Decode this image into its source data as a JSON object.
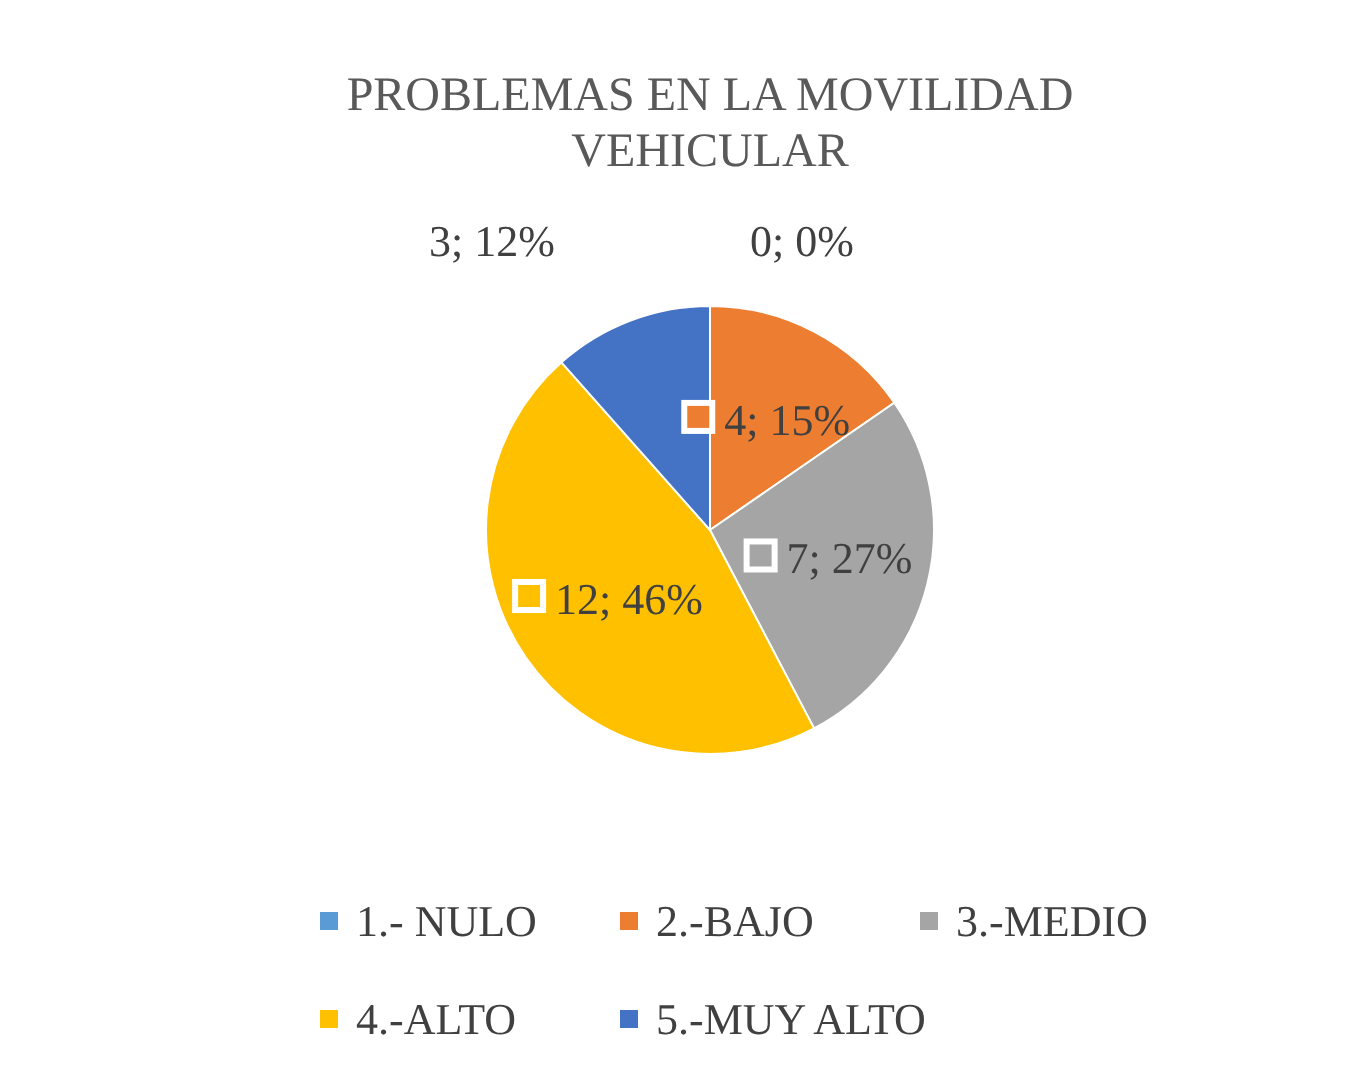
{
  "chart_data": {
    "type": "pie",
    "title": "PROBLEMAS EN LA MOVILIDAD VEHICULAR",
    "categories": [
      "1.- NULO",
      "2.-BAJO",
      "3.-MEDIO",
      "4.-ALTO",
      "5.-MUY ALTO"
    ],
    "values": [
      0,
      4,
      7,
      12,
      3
    ],
    "colors": [
      "#5b9bd5",
      "#ed7d31",
      "#a5a5a5",
      "#ffc000",
      "#4472c4"
    ],
    "value_labels": [
      "0; 0%",
      "4; 15%",
      "7; 27%",
      "12; 46%",
      "3; 12%"
    ],
    "legend": "bottom"
  }
}
